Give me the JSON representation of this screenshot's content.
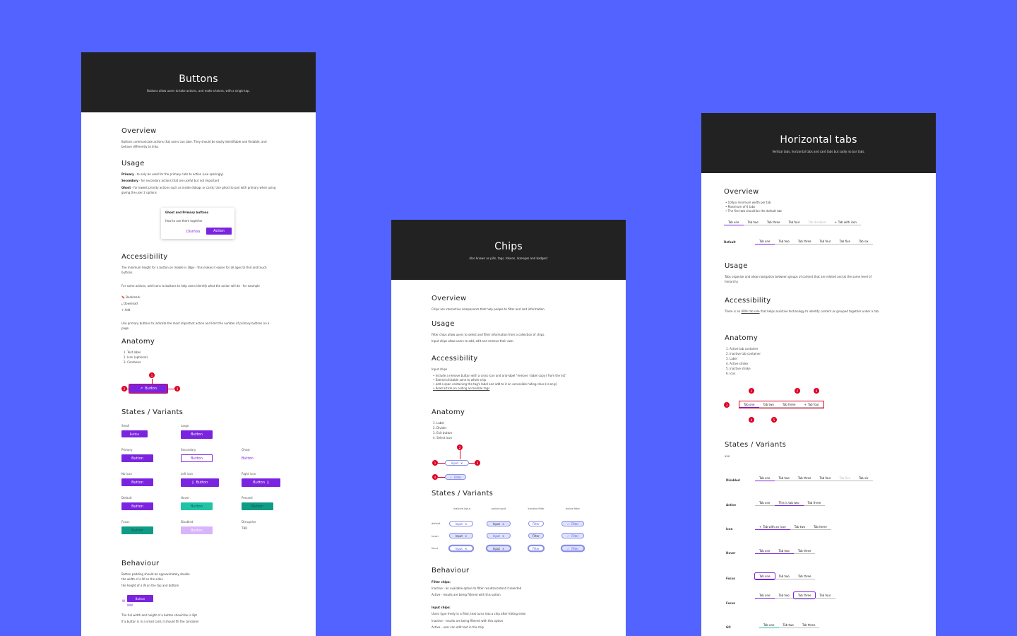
{
  "buttons_card": {
    "title": "Buttons",
    "subtitle": "Buttons allow users to take actions, and make choices, with a single tap.",
    "overview_h": "Overview",
    "overview_t": "Buttons communicate actions that users can take. They should be easily identifiable and findable, and behave differently to links.",
    "usage_h": "Usage",
    "usage_primary_b": "Primary",
    "usage_primary": " - to only be used for the primary calls to action (use sparingly)",
    "usage_secondary_b": "Secondary",
    "usage_secondary": " - for secondary actions that are useful but not important",
    "usage_ghost_b": "Ghost",
    "usage_ghost": " - for lowest priority actions such as inside dialogs or cards. Use ghost to pair with primary when using giving the user 2 options",
    "dialog_title": "Ghost and Primary buttons",
    "dialog_text": "How to use them together",
    "dialog_dismiss": "Dismiss",
    "dialog_action": "Action",
    "a11y_h": "Accessibility",
    "a11y_t1": "The minimum height for a button on mobile is 38px - this makes it easier for all ages to find and touch buttons.",
    "a11y_t2": "For some actions, add icons to buttons to help users identify what the action will do - for example",
    "icon_items": [
      "Bookmark",
      "Download",
      "Add"
    ],
    "a11y_t3": "Use primary buttons to indicate the most important action and limit the number of primary buttons on a page",
    "anatomy_h": "Anatomy",
    "anatomy_list": [
      "1. Text label",
      "2. Icon (optional)",
      "3. Container"
    ],
    "anatomy_btn": "Button",
    "states_h": "States / Variants",
    "button_label": "Button",
    "state_labels": {
      "small": "Small",
      "large": "Large",
      "primary": "Primary",
      "secondary": "Secondary",
      "ghost": "Ghost",
      "noicon": "No icon",
      "lefticon": "Left icon",
      "righticon": "Right icon",
      "default": "Default",
      "hover": "Hover",
      "pressed": "Pressed",
      "focus": "Focus",
      "disabled": "Disabled",
      "disruptive": "Disruptive"
    },
    "tbd": "TBD",
    "behaviour_h": "Behaviour",
    "beh_t1": "Button padding should be approximately double the width of a W on the sides",
    "beh_t2": "the height of a W on the top and bottom",
    "beh_w": "W",
    "beh_ww": "WW",
    "beh_t3": "The full width and height of a button should be in 8pt",
    "beh_t4": "If a button is in a small card, it should fill the container"
  },
  "chips_card": {
    "title": "Chips",
    "subtitle": "Also known as pills, tags, tokens, lozenges and badges!",
    "overview_h": "Overview",
    "overview_t": "Chips are interactive components that help people to filter and sort information.",
    "usage_h": "Usage",
    "usage_t1": "Filter chips allow users to select and filter information from a collection of chips.",
    "usage_t2": "Input chips allow users to add, edit and remove their own.",
    "a11y_h": "Accessibility",
    "a11y_sub": "Input chips",
    "a11y_list": [
      "Include a remove button with a cross icon and aria-label \"remove {label copy} from the list\"",
      "Extend clickable zone to whole chip",
      "add a span containing the tag's label and add to it an accessible hiding class (sr-only)",
      "Read article on coding accessible tags"
    ],
    "anatomy_h": "Anatomy",
    "anatomy_list": [
      "1. Label",
      "2. Divider",
      "3. Exit button",
      "4. Select icon"
    ],
    "chip_input": "Input",
    "chip_filter": "Filter",
    "states_h": "States / Variants",
    "cols": [
      "inactive input",
      "active input",
      "inactive filter",
      "active filter"
    ],
    "rows": [
      "default",
      "hover",
      "focus"
    ],
    "behaviour_h": "Behaviour",
    "beh_filter_h": "Filter chips:",
    "beh_filter_1": "Inactive - an available option to filter results/content if selected",
    "beh_filter_2": "Active - results are being filtered with this option",
    "beh_input_h": "Input chips:",
    "beh_input_1": "Users type freely in a filed, text turns into a chip after hitting enter",
    "beh_input_2": "Inactive - results are being filtered with this option",
    "beh_input_3": "Active - user can edit text in the chip"
  },
  "tabs_card": {
    "title": "Horizontal tabs",
    "subtitle": "Vertical tabs, horizontal tabs and card tabs but sadly no bar tabs.",
    "overview_h": "Overview",
    "overview_list": [
      "100px minimum width per tab",
      "Maximum of 6 tabs",
      "The first tab should be the default tab"
    ],
    "tabs_row1": [
      "Tab one",
      "Tab two",
      "Tab three",
      "Tab four",
      "Tab disabled",
      "Tab with icon"
    ],
    "default_lbl": "Default",
    "tabs_row2": [
      "Tab one",
      "Tab two",
      "Tab three",
      "Tab four",
      "Tab five",
      "Tab six"
    ],
    "usage_h": "Usage",
    "usage_t": "Tabs organize and allow navigation between groups of content that are related and at the same level of hierarchy.",
    "a11y_h": "Accessibility",
    "a11y_t1": "There is an ",
    "a11y_link": "ARIA tab role",
    "a11y_t2": " that helps assistive technology to identify content as grouped together under a tab.",
    "anatomy_h": "Anatomy",
    "anatomy_list": [
      "1. Active tab container",
      "2. Inactive tab container",
      "3. Label",
      "4. Active stroke",
      "5. Inactive stroke",
      "6. Icon"
    ],
    "anat_tabs": [
      "Tab one",
      "Tab two",
      "Tab three",
      "Tab four"
    ],
    "states_h": "States / Variants",
    "states_xxx": "xxx",
    "disabled_lbl": "Disabled",
    "disabled_tabs": [
      "Tab one",
      "Tab two",
      "Tab three",
      "Tab four",
      "Tab five",
      "Tab six"
    ],
    "active_lbl": "Active",
    "active_tabs": [
      "Tab one",
      "This is tab two",
      "Tab three"
    ],
    "icon_lbl": "Icon",
    "icon_tabs": [
      "Tab with an icon",
      "Tab two",
      "Tab three"
    ],
    "hover_lbl": "Hover",
    "hover_tabs": [
      "Tab one",
      "Tab two",
      "Tab three"
    ],
    "focus_lbl": "Focus",
    "focus_tabs": [
      "Tab one",
      "Tab two",
      "Tab three"
    ],
    "focus2_lbl": "Focus",
    "focus2_tabs": [
      "Tab one",
      "Tab two",
      "Tab three",
      "Tab four"
    ],
    "go_lbl": "GO",
    "go_tabs": [
      "Tab one",
      "Tab two",
      "Tab three"
    ]
  },
  "colors": {
    "background": "#5263ff",
    "header": "#222222",
    "primary": "#7b24e0",
    "teal": "#1fc4a8",
    "annotation": "#e00025",
    "chip": "#8a8fe8"
  }
}
